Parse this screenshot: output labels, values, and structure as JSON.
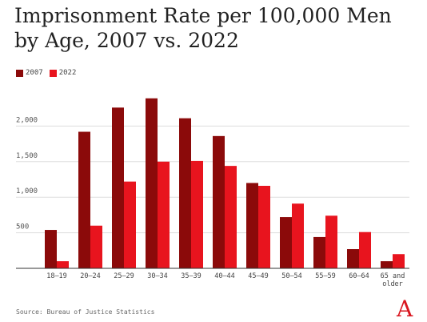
{
  "title": "Imprisonment Rate per 100,000 Men by Age, 2007 vs. 2022",
  "source": "Source: Bureau of Justice Statistics",
  "logo_text": "A",
  "colors": {
    "s2007": "#8b0a0a",
    "s2022": "#e8141e",
    "grid": "#dddddd",
    "axis": "#333333"
  },
  "chart_data": {
    "type": "bar",
    "title": "Imprisonment Rate per 100,000 Men by Age, 2007 vs. 2022",
    "xlabel": "",
    "ylabel": "",
    "categories": [
      "18–19",
      "20–24",
      "25–29",
      "30–34",
      "35–39",
      "40–44",
      "45–49",
      "50–54",
      "55–59",
      "60–64",
      "65 and older"
    ],
    "series": [
      {
        "name": "2007",
        "values": [
          540,
          1920,
          2260,
          2390,
          2110,
          1860,
          1200,
          720,
          440,
          270,
          100
        ]
      },
      {
        "name": "2022",
        "values": [
          100,
          600,
          1220,
          1500,
          1510,
          1440,
          1160,
          910,
          740,
          510,
          200
        ]
      }
    ],
    "yticks": [
      500,
      1000,
      1500,
      2000
    ],
    "ytick_labels": [
      "500",
      "1,000",
      "1,500",
      "2,000"
    ],
    "ylim": [
      0,
      2500
    ],
    "grid": true,
    "legend": "top-left"
  }
}
